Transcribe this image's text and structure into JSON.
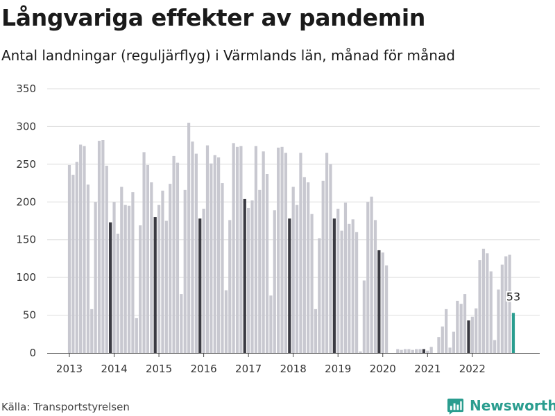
{
  "title": "Långvariga effekter av pandemin",
  "subtitle": "Antal landningar (reguljärflyg) i Värmlands län, månad för månad",
  "source": "Källa: Transportstyrelsen",
  "brand": {
    "name": "Newsworthy",
    "color": "#2a9d8f",
    "icon": "newsworthy-logo-icon"
  },
  "colors": {
    "bar": "#c8c8d0",
    "december": "#3a3a42",
    "highlight": "#2a9d8f",
    "grid": "#dddddd",
    "axis": "#444444"
  },
  "chart_data": {
    "type": "bar",
    "title": "Långvariga effekter av pandemin",
    "subtitle": "Antal landningar (reguljärflyg) i Värmlands län, månad för månad",
    "xlabel": "",
    "ylabel": "",
    "ylim": [
      0,
      350
    ],
    "yticks": [
      0,
      50,
      100,
      150,
      200,
      250,
      300,
      350
    ],
    "grid": true,
    "years": [
      "2013",
      "2014",
      "2015",
      "2016",
      "2017",
      "2018",
      "2019",
      "2020",
      "2021",
      "2022"
    ],
    "monthly_values": [
      [
        249,
        236,
        253,
        276,
        274,
        223,
        58,
        200,
        281,
        282,
        248,
        173
      ],
      [
        200,
        158,
        220,
        196,
        195,
        213,
        46,
        169,
        266,
        249,
        226,
        180
      ],
      [
        196,
        215,
        175,
        224,
        261,
        252,
        78,
        216,
        305,
        280,
        264,
        178
      ],
      [
        191,
        275,
        251,
        262,
        259,
        225,
        83,
        176,
        278,
        273,
        274,
        204
      ],
      [
        192,
        202,
        274,
        216,
        267,
        237,
        76,
        189,
        272,
        273,
        265,
        178
      ],
      [
        220,
        196,
        265,
        233,
        226,
        184,
        58,
        152,
        228,
        265,
        250,
        178
      ],
      [
        191,
        162,
        199,
        171,
        177,
        160,
        2,
        96,
        200,
        207,
        176,
        136
      ],
      [
        133,
        116,
        0,
        0,
        5,
        4,
        5,
        5,
        4,
        5,
        5,
        5
      ],
      [
        3,
        8,
        0,
        21,
        35,
        58,
        7,
        28,
        69,
        65,
        78,
        43
      ],
      [
        48,
        59,
        123,
        138,
        132,
        108,
        17,
        84,
        117,
        128,
        130,
        53
      ]
    ],
    "highlight_label": "53",
    "highlight_value": 53,
    "highlight_period": "2022-12",
    "december_bars_darker": true
  }
}
